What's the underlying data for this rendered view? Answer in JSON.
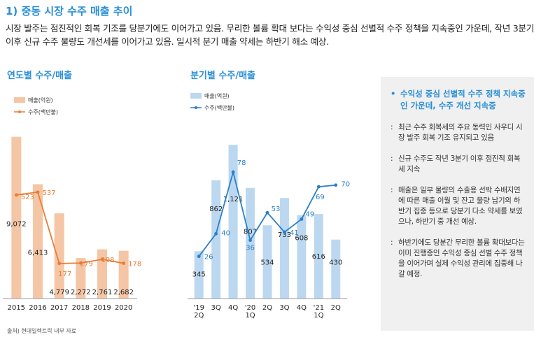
{
  "header": {
    "title": "1) 중동 시장 수주 매출 추이",
    "summary": "시장 발주는 점진적인 회복 기조를 당분기에도 이어가고 있음. 무리한 볼륨 확대 보다는 수익성 중심 선별적 수주 정책을 지속중인 가운데, 작년 3분기 이후 신규 수주 물량도 개선세를 이어가고 있음. 일시적 분기 매출 약세는 하반기 해소 예상."
  },
  "chart_data": [
    {
      "type": "bar",
      "title": "연도별 수주/매출",
      "categories": [
        "2015",
        "2016",
        "2017",
        "2018",
        "2019",
        "2020"
      ],
      "series": [
        {
          "name": "매출(억원)",
          "kind": "bar",
          "color": "#f5c6a5",
          "values": [
            9072,
            6413,
            4779,
            2272,
            2761,
            2682
          ],
          "labels": [
            "9,072",
            "6,413",
            "4,779",
            "2,272",
            "2,761",
            "2,682"
          ]
        },
        {
          "name": "수주(백만불)",
          "kind": "line",
          "color": "#e87d35",
          "values": [
            523,
            537,
            177,
            179,
            198,
            178
          ],
          "labels": [
            "523",
            "537",
            "177",
            "179",
            "198",
            "178"
          ]
        }
      ],
      "bar_ylim": [
        0,
        10000
      ],
      "line_ylim": [
        0,
        900
      ],
      "legend_position": "top-left"
    },
    {
      "type": "bar",
      "title": "분기별 수주/매출",
      "categories": [
        "'19\n2Q",
        "3Q",
        "4Q",
        "'20\n1Q",
        "2Q",
        "3Q",
        "4Q",
        "'21\n1Q",
        "2Q"
      ],
      "series": [
        {
          "name": "매출(억원)",
          "kind": "bar",
          "color": "#bcd8f0",
          "values": [
            345,
            862,
            1121,
            807,
            534,
            733,
            608,
            616,
            430
          ],
          "labels": [
            "345",
            "862",
            "1,121",
            "807",
            "534",
            "733",
            "608",
            "616",
            "430"
          ]
        },
        {
          "name": "수주(백만불)",
          "kind": "line",
          "color": "#2a7fc8",
          "values": [
            26,
            40,
            78,
            36,
            53,
            41,
            49,
            69,
            70
          ],
          "labels": [
            "26",
            "40",
            "78",
            "36",
            "53",
            "41",
            "49",
            "69",
            "70"
          ]
        }
      ],
      "bar_ylim": [
        0,
        1300
      ],
      "line_ylim": [
        0,
        110
      ],
      "legend_position": "top-left"
    }
  ],
  "panel": {
    "bullet": "•",
    "mark": ":",
    "headline": "수익성 중심 선별적 수주 정책 지속중인 가운데, 수주 개선 지속중",
    "items": [
      "최근 수주 회복세의 주요 동력인 사우디 시장 발주 회복 기조 유지되고 있음",
      "신규 수주도 작년 3분기 이후 점진적 회복세  지속",
      "매출은 일부 물량의 수출용 선박 수배지연에 따른 매출 이월 및 잔고 물량 납기의 하반기 집중 등으로 당분기 다소 약세를 보였으나, 하반기 중 개선 예상.",
      "하반기에도 당분간 무리한 볼륨 확대보다는 이미 진행중인 수익성 중심 선별 수주 정책을 이어가며 실제 수익성 관리에 집중해 나갈 예정."
    ]
  },
  "source": "출처) 현대일렉트릭 내부 자료"
}
